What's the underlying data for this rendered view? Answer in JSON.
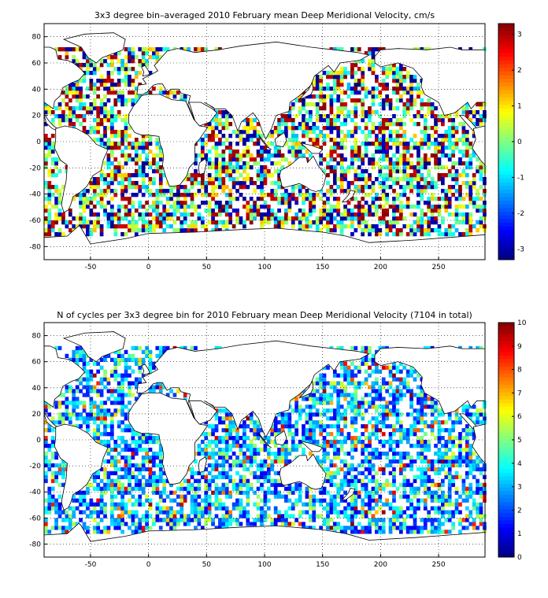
{
  "chart_data": [
    {
      "type": "heatmap",
      "title": "3x3 degree bin–averaged 2010 February mean Deep Meridional Velocity, cm/s",
      "xlabel": "",
      "ylabel": "",
      "xlim": [
        -90,
        290
      ],
      "ylim": [
        -90,
        90
      ],
      "x_ticks": [
        -50,
        0,
        50,
        100,
        150,
        200,
        250
      ],
      "y_ticks": [
        80,
        60,
        40,
        20,
        0,
        -20,
        -40,
        -60,
        -80
      ],
      "grid": true,
      "bin_size_deg": 3,
      "colormap": "jet",
      "colorbar": {
        "min": -3.3,
        "max": 3.3,
        "ticks": [
          3,
          2,
          1,
          0,
          -1,
          -2,
          -3
        ]
      },
      "value_distribution": "saturated +/- values dominant, many near zero",
      "land": "white with black coastlines"
    },
    {
      "type": "heatmap",
      "title": "N of cycles per 3x3 degree bin for 2010 February mean Deep Meridional Velocity (7104 in total)",
      "xlabel": "",
      "ylabel": "",
      "xlim": [
        -90,
        290
      ],
      "ylim": [
        -90,
        90
      ],
      "x_ticks": [
        -50,
        0,
        50,
        100,
        150,
        200,
        250
      ],
      "y_ticks": [
        80,
        60,
        40,
        20,
        0,
        -20,
        -40,
        -60,
        -80
      ],
      "grid": true,
      "bin_size_deg": 3,
      "colormap": "jet",
      "colorbar": {
        "min": 0,
        "max": 10,
        "ticks": [
          10,
          9,
          8,
          7,
          6,
          5,
          4,
          3,
          2,
          1,
          0
        ]
      },
      "total_cycles": 7104,
      "value_distribution": "mostly 1-4 cycles per bin",
      "land": "white with black coastlines"
    }
  ]
}
